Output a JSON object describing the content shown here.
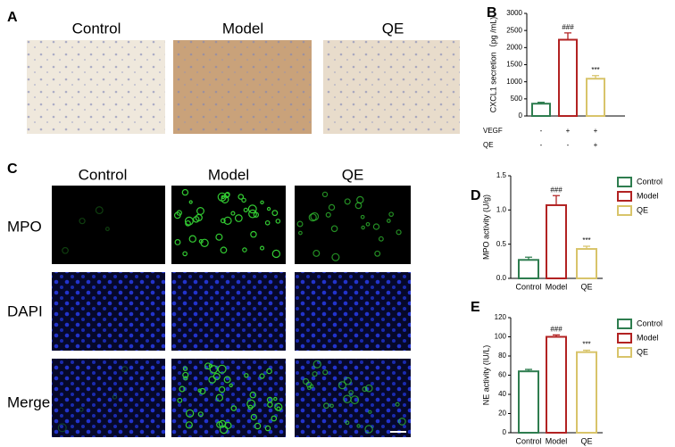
{
  "panel_a": {
    "label": "A",
    "columns": [
      "Control",
      "Model",
      "QE"
    ]
  },
  "panel_c": {
    "label": "C",
    "columns": [
      "Control",
      "Model",
      "QE"
    ],
    "rows": [
      "MPO",
      "DAPI",
      "Merge"
    ]
  },
  "chart_data": [
    {
      "type": "bar",
      "panel_label": "B",
      "y_label": "CXCL1 secretion（pg /mL)",
      "values": [
        360,
        2230,
        1090
      ],
      "errors": [
        40,
        200,
        90
      ],
      "annotations": [
        null,
        "###",
        "***"
      ],
      "colors": [
        "#2e7d4f",
        "#b22222",
        "#d8c46a"
      ],
      "conditions": [
        {
          "name": "VEGF",
          "values": [
            "-",
            "+",
            "+"
          ]
        },
        {
          "name": "QE",
          "values": [
            "-",
            "-",
            "+"
          ]
        }
      ],
      "ylim": [
        0,
        3000
      ],
      "yticks": [
        0,
        500,
        1000,
        1500,
        2000,
        2500,
        3000
      ]
    },
    {
      "type": "bar",
      "panel_label": "D",
      "y_label": "MPO activity (U/g)",
      "categories": [
        "Control",
        "Model",
        "QE"
      ],
      "values": [
        0.27,
        1.07,
        0.43
      ],
      "errors": [
        0.04,
        0.14,
        0.04
      ],
      "annotations": [
        null,
        "###",
        "***"
      ],
      "colors": [
        "#2e7d4f",
        "#b22222",
        "#d8c46a"
      ],
      "legend": true,
      "ylim": [
        0,
        1.5
      ],
      "yticks": [
        {
          "value": 0,
          "label": "0.0"
        },
        0.5,
        {
          "value": 1,
          "label": "1.0"
        },
        1.5
      ]
    },
    {
      "type": "bar",
      "panel_label": "E",
      "y_label": "NE  activity (IU/L)",
      "categories": [
        "Control",
        "Model",
        "QE"
      ],
      "values": [
        64,
        100,
        84
      ],
      "errors": [
        2,
        2,
        2
      ],
      "annotations": [
        null,
        "###",
        "***"
      ],
      "colors": [
        "#2e7d4f",
        "#b22222",
        "#d8c46a"
      ],
      "legend": true,
      "ylim": [
        0,
        120
      ],
      "yticks": [
        0,
        20,
        40,
        60,
        80,
        100,
        120
      ]
    }
  ]
}
